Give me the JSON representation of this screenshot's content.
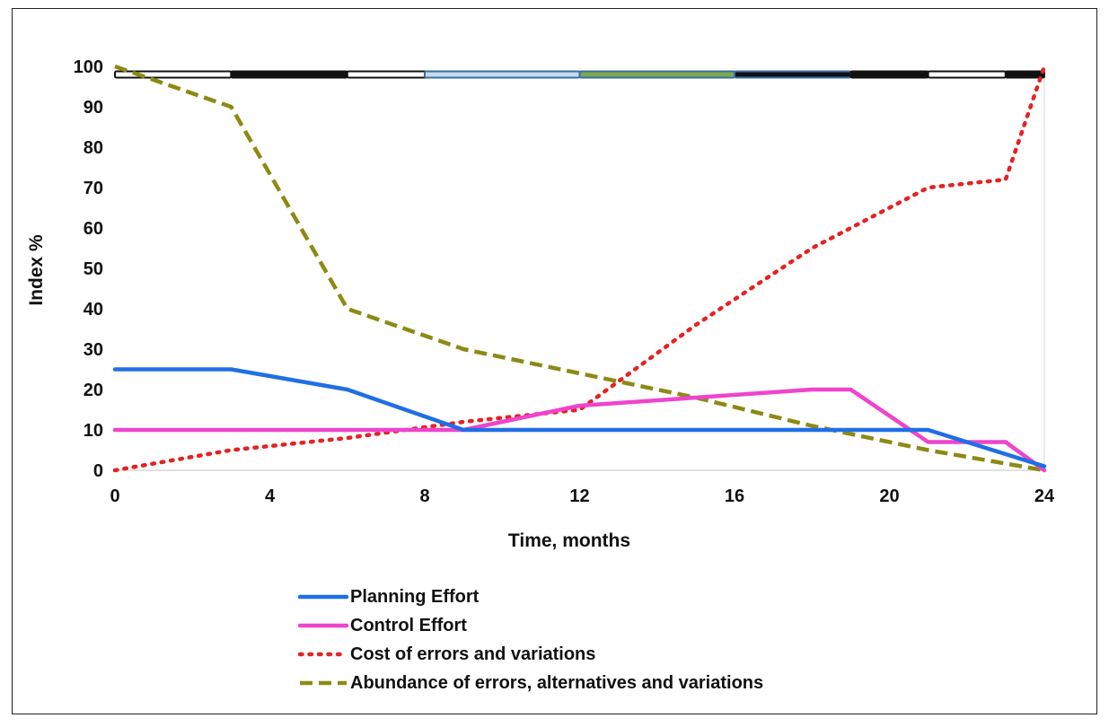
{
  "chart_data": {
    "type": "line",
    "title": "",
    "xlabel": "Time, months",
    "ylabel": "Index  %",
    "xlim": [
      0,
      24
    ],
    "ylim": [
      0,
      100
    ],
    "x_ticks": [
      0,
      4,
      8,
      12,
      16,
      20,
      24
    ],
    "y_ticks": [
      0,
      10,
      20,
      30,
      40,
      50,
      60,
      70,
      80,
      90,
      100
    ],
    "grid": false,
    "legend_position": "bottom",
    "series": [
      {
        "name": "Planning Effort",
        "color": "#1f6fe5",
        "style": "solid",
        "x": [
          0,
          3,
          6,
          9,
          21,
          24
        ],
        "y": [
          25,
          25,
          20,
          10,
          10,
          1
        ]
      },
      {
        "name": "Control Effort",
        "color": "#ee44cc",
        "style": "solid",
        "x": [
          0,
          9,
          12,
          18,
          19,
          21,
          23,
          24
        ],
        "y": [
          10,
          10,
          16,
          20,
          20,
          7,
          7,
          0
        ]
      },
      {
        "name": "Cost of errors and variations",
        "color": "#e52222",
        "style": "dotted",
        "x": [
          0,
          3,
          6,
          9,
          12,
          15,
          18,
          21,
          23,
          24
        ],
        "y": [
          0,
          5,
          8,
          12,
          15,
          36,
          55,
          70,
          72,
          100
        ]
      },
      {
        "name": "Abundance of errors, alternatives  and variations",
        "color": "#8c8a14",
        "style": "dashed",
        "x": [
          0,
          3,
          6,
          9,
          12,
          15,
          18,
          21,
          24
        ],
        "y": [
          100,
          90,
          40,
          30,
          24,
          18,
          11,
          5,
          0
        ]
      }
    ],
    "timeline_bar": {
      "y": 98,
      "segments": [
        {
          "x": [
            0,
            3
          ],
          "fill": "#ffffff",
          "edge": "#111111"
        },
        {
          "x": [
            3,
            6
          ],
          "fill": "#111111",
          "edge": "#111111"
        },
        {
          "x": [
            6,
            9
          ],
          "fill": "#ffffff",
          "edge": "#111111"
        },
        {
          "x": [
            8,
            12
          ],
          "fill": "#c7dcef",
          "edge": "#3a6ea5"
        },
        {
          "x": [
            12,
            16
          ],
          "fill": "#7fa84e",
          "edge": "#3a6ea5"
        },
        {
          "x": [
            16,
            19
          ],
          "fill": "#111111",
          "edge": "#3a6ea5"
        },
        {
          "x": [
            19,
            21
          ],
          "fill": "#111111",
          "edge": "#111111"
        },
        {
          "x": [
            21,
            23
          ],
          "fill": "#ffffff",
          "edge": "#111111"
        },
        {
          "x": [
            23,
            24
          ],
          "fill": "#111111",
          "edge": "#111111"
        }
      ]
    }
  }
}
